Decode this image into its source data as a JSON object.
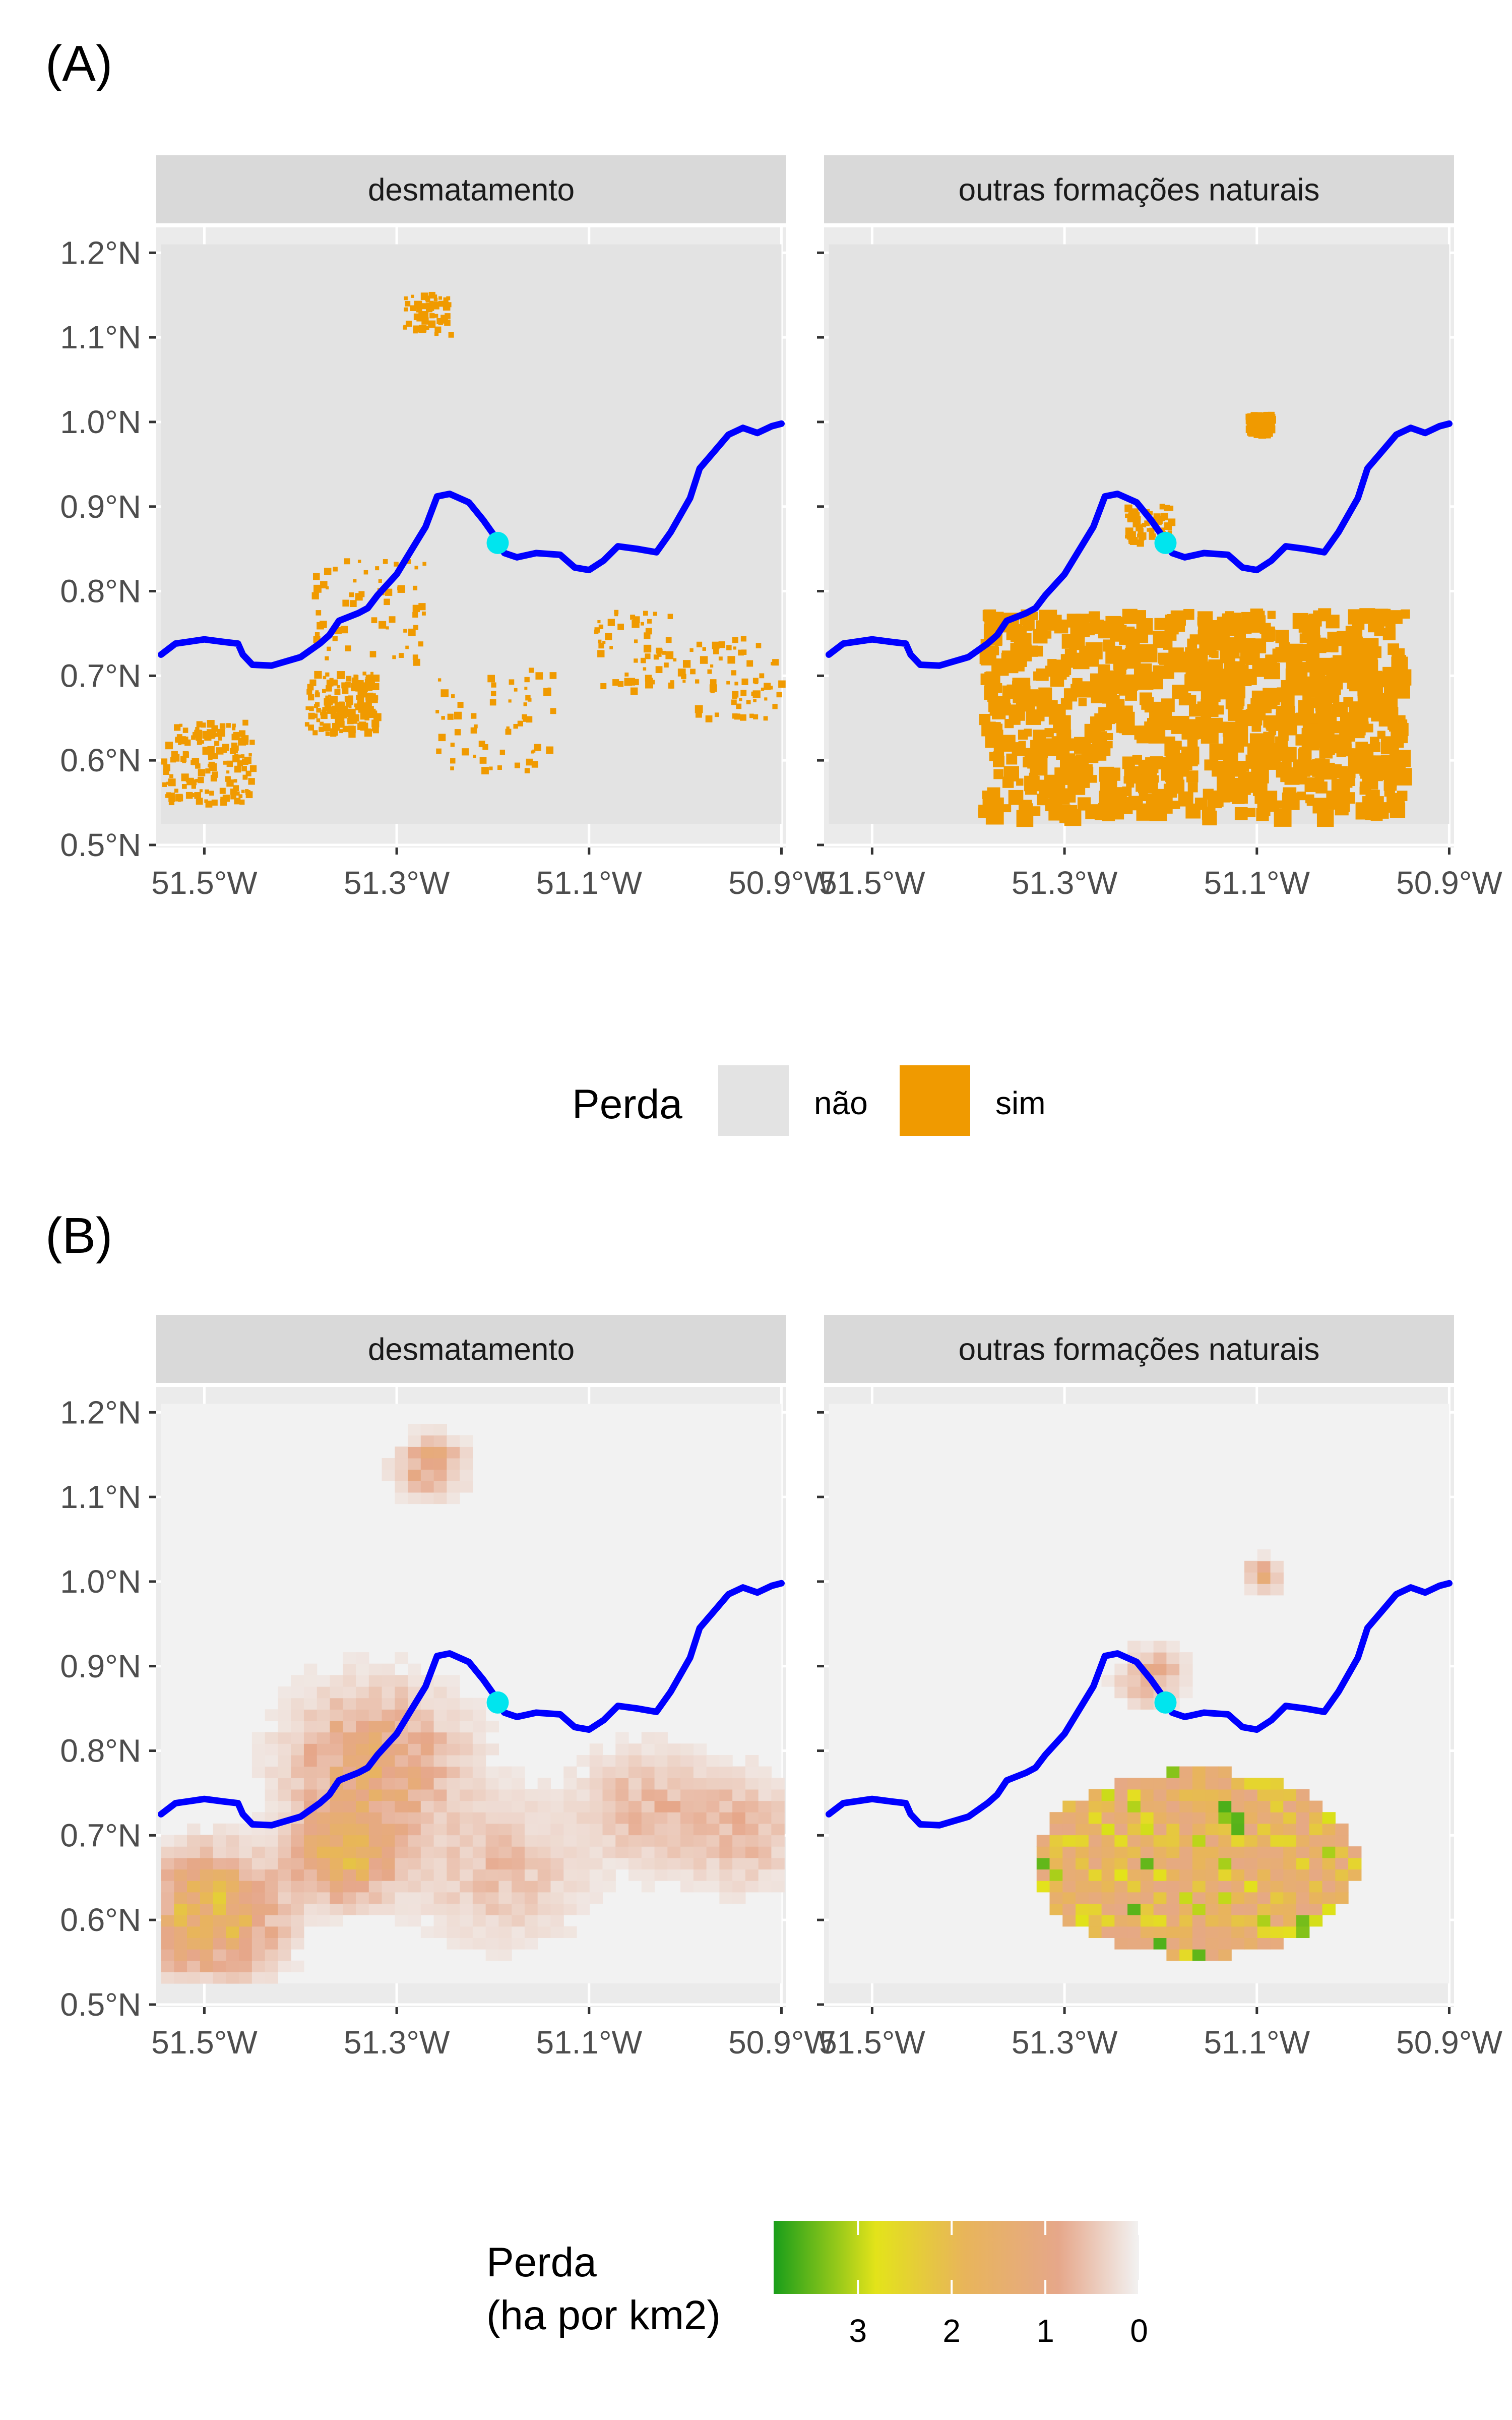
{
  "panel_labels": [
    "(A)",
    "(B)"
  ],
  "facet_titles": [
    "desmatamento",
    "outras formações naturais"
  ],
  "colors": {
    "river": "#0000ff",
    "site": "#00e5ee",
    "perda_nao": "#e3e3e3",
    "perda_sim": "#f09a00",
    "strip": "#d9d9d9",
    "panel_bg": "#ebebeb",
    "gradient": [
      "#1a9e1a",
      "#e3e31a",
      "#e8b55a",
      "#e6a78a",
      "#f2f2f2"
    ]
  },
  "legend_a": {
    "title": "Perda",
    "items": [
      {
        "label": "não",
        "color": "#e3e3e3"
      },
      {
        "label": "sim",
        "color": "#f09a00"
      }
    ]
  },
  "legend_b": {
    "title_line1": "Perda",
    "title_line2": "(ha por km2)",
    "ticks": [
      "3",
      "2",
      "1",
      "0"
    ]
  },
  "chart_data": [
    {
      "type": "heatmap",
      "panel": "(A)",
      "value_type": "categorical",
      "legend_title": "Perda",
      "categories": [
        "não",
        "sim"
      ],
      "facets": [
        "desmatamento",
        "outras formações naturais"
      ],
      "x_ticks": [
        "51.5°W",
        "51.3°W",
        "51.1°W",
        "50.9°W"
      ],
      "y_ticks": [
        "0.5°N",
        "0.6°N",
        "0.7°N",
        "0.8°N",
        "0.9°N",
        "1.0°N",
        "1.1°N",
        "1.2°N"
      ],
      "xlim": [
        -51.55,
        -50.895
      ],
      "ylim": [
        0.497,
        1.23
      ],
      "site_point": {
        "lon": -51.195,
        "lat": 0.857
      },
      "river_lon_lat": [
        [
          -51.545,
          0.725
        ],
        [
          -51.53,
          0.738
        ],
        [
          -51.5,
          0.743
        ],
        [
          -51.48,
          0.74
        ],
        [
          -51.465,
          0.738
        ],
        [
          -51.46,
          0.725
        ],
        [
          -51.45,
          0.713
        ],
        [
          -51.43,
          0.712
        ],
        [
          -51.4,
          0.722
        ],
        [
          -51.38,
          0.738
        ],
        [
          -51.37,
          0.748
        ],
        [
          -51.36,
          0.765
        ],
        [
          -51.34,
          0.774
        ],
        [
          -51.33,
          0.78
        ],
        [
          -51.32,
          0.795
        ],
        [
          -51.3,
          0.82
        ],
        [
          -51.285,
          0.848
        ],
        [
          -51.27,
          0.876
        ],
        [
          -51.258,
          0.912
        ],
        [
          -51.245,
          0.915
        ],
        [
          -51.225,
          0.905
        ],
        [
          -51.21,
          0.884
        ],
        [
          -51.2,
          0.868
        ],
        [
          -51.195,
          0.857
        ],
        [
          -51.188,
          0.845
        ],
        [
          -51.175,
          0.84
        ],
        [
          -51.155,
          0.845
        ],
        [
          -51.13,
          0.843
        ],
        [
          -51.115,
          0.828
        ],
        [
          -51.1,
          0.825
        ],
        [
          -51.085,
          0.836
        ],
        [
          -51.07,
          0.853
        ],
        [
          -51.05,
          0.85
        ],
        [
          -51.03,
          0.846
        ],
        [
          -51.015,
          0.87
        ],
        [
          -51.005,
          0.89
        ],
        [
          -50.995,
          0.91
        ],
        [
          -50.985,
          0.945
        ],
        [
          -50.97,
          0.965
        ],
        [
          -50.955,
          0.985
        ],
        [
          -50.94,
          0.993
        ],
        [
          -50.925,
          0.987
        ],
        [
          -50.91,
          0.995
        ],
        [
          -50.9,
          0.998
        ]
      ],
      "loss_clusters": {
        "desmatamento": [
          {
            "lon": -51.5,
            "lat": 0.6,
            "spread": 0.04,
            "density": "medium"
          },
          {
            "lon": -51.36,
            "lat": 0.67,
            "spread": 0.03,
            "density": "medium"
          },
          {
            "lon": -51.33,
            "lat": 0.78,
            "spread": 0.05,
            "density": "low"
          },
          {
            "lon": -51.27,
            "lat": 1.13,
            "spread": 0.02,
            "density": "low"
          },
          {
            "lon": -51.2,
            "lat": 0.65,
            "spread": 0.05,
            "density": "low"
          },
          {
            "lon": -51.05,
            "lat": 0.73,
            "spread": 0.04,
            "density": "low"
          },
          {
            "lon": -50.95,
            "lat": 0.7,
            "spread": 0.04,
            "density": "low"
          }
        ],
        "outras formações naturais": [
          {
            "lon": -51.17,
            "lat": 0.66,
            "spread": 0.22,
            "density": "high"
          },
          {
            "lon": -51.1,
            "lat": 1.0,
            "spread": 0.01,
            "density": "medium"
          },
          {
            "lon": -51.215,
            "lat": 0.88,
            "spread": 0.02,
            "density": "low"
          }
        ]
      }
    },
    {
      "type": "heatmap",
      "panel": "(B)",
      "value_type": "continuous",
      "legend_title": "Perda (ha por km2)",
      "color_scale_ticks": [
        3,
        2,
        1,
        0
      ],
      "color_scale_range": [
        0,
        3.9
      ],
      "facets": [
        "desmatamento",
        "outras formações naturais"
      ],
      "x_ticks": [
        "51.5°W",
        "51.3°W",
        "51.1°W",
        "50.9°W"
      ],
      "y_ticks": [
        "0.5°N",
        "0.6°N",
        "0.7°N",
        "0.8°N",
        "0.9°N",
        "1.0°N",
        "1.1°N",
        "1.2°N"
      ],
      "xlim": [
        -51.55,
        -50.895
      ],
      "ylim": [
        0.497,
        1.23
      ],
      "grid_cell_deg": 0.0135,
      "site_point": {
        "lon": -51.195,
        "lat": 0.857
      },
      "loss_clusters": {
        "desmatamento": [
          {
            "lon": -51.5,
            "lat": 0.6,
            "spread": 0.04,
            "peak": 2.8
          },
          {
            "lon": -51.36,
            "lat": 0.67,
            "spread": 0.03,
            "peak": 2.5
          },
          {
            "lon": -51.33,
            "lat": 0.78,
            "spread": 0.05,
            "peak": 1.8
          },
          {
            "lon": -51.27,
            "lat": 1.13,
            "spread": 0.02,
            "peak": 1.6
          },
          {
            "lon": -51.2,
            "lat": 0.65,
            "spread": 0.05,
            "peak": 0.8
          },
          {
            "lon": -51.05,
            "lat": 0.73,
            "spread": 0.04,
            "peak": 0.9
          },
          {
            "lon": -50.95,
            "lat": 0.7,
            "spread": 0.04,
            "peak": 0.9
          }
        ],
        "outras formações naturais": [
          {
            "lon": -51.17,
            "lat": 0.66,
            "spread": 0.22,
            "peak": 3.9
          },
          {
            "lon": -51.1,
            "lat": 1.0,
            "spread": 0.01,
            "peak": 1.6
          },
          {
            "lon": -51.215,
            "lat": 0.88,
            "spread": 0.02,
            "peak": 1.2
          }
        ]
      }
    }
  ]
}
